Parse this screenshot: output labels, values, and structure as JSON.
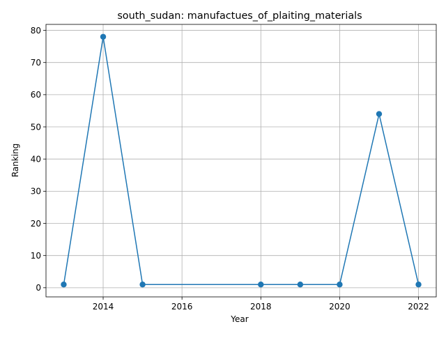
{
  "chart_data": {
    "type": "line",
    "title": "south_sudan: manufactues_of_plaiting_materials",
    "xlabel": "Year",
    "ylabel": "Ranking",
    "x": [
      2013,
      2014,
      2015,
      2018,
      2019,
      2020,
      2021,
      2022
    ],
    "series": [
      {
        "values": [
          1,
          78,
          1,
          1,
          1,
          1,
          54,
          1
        ]
      }
    ],
    "xlim": [
      2012.55,
      2022.45
    ],
    "ylim": [
      -2.85,
      81.85
    ],
    "xticks": [
      2014,
      2016,
      2018,
      2020,
      2022
    ],
    "yticks": [
      0,
      10,
      20,
      30,
      40,
      50,
      60,
      70,
      80
    ],
    "grid": true,
    "line_color": "#1f77b4",
    "grid_color": "#b0b0b0"
  }
}
